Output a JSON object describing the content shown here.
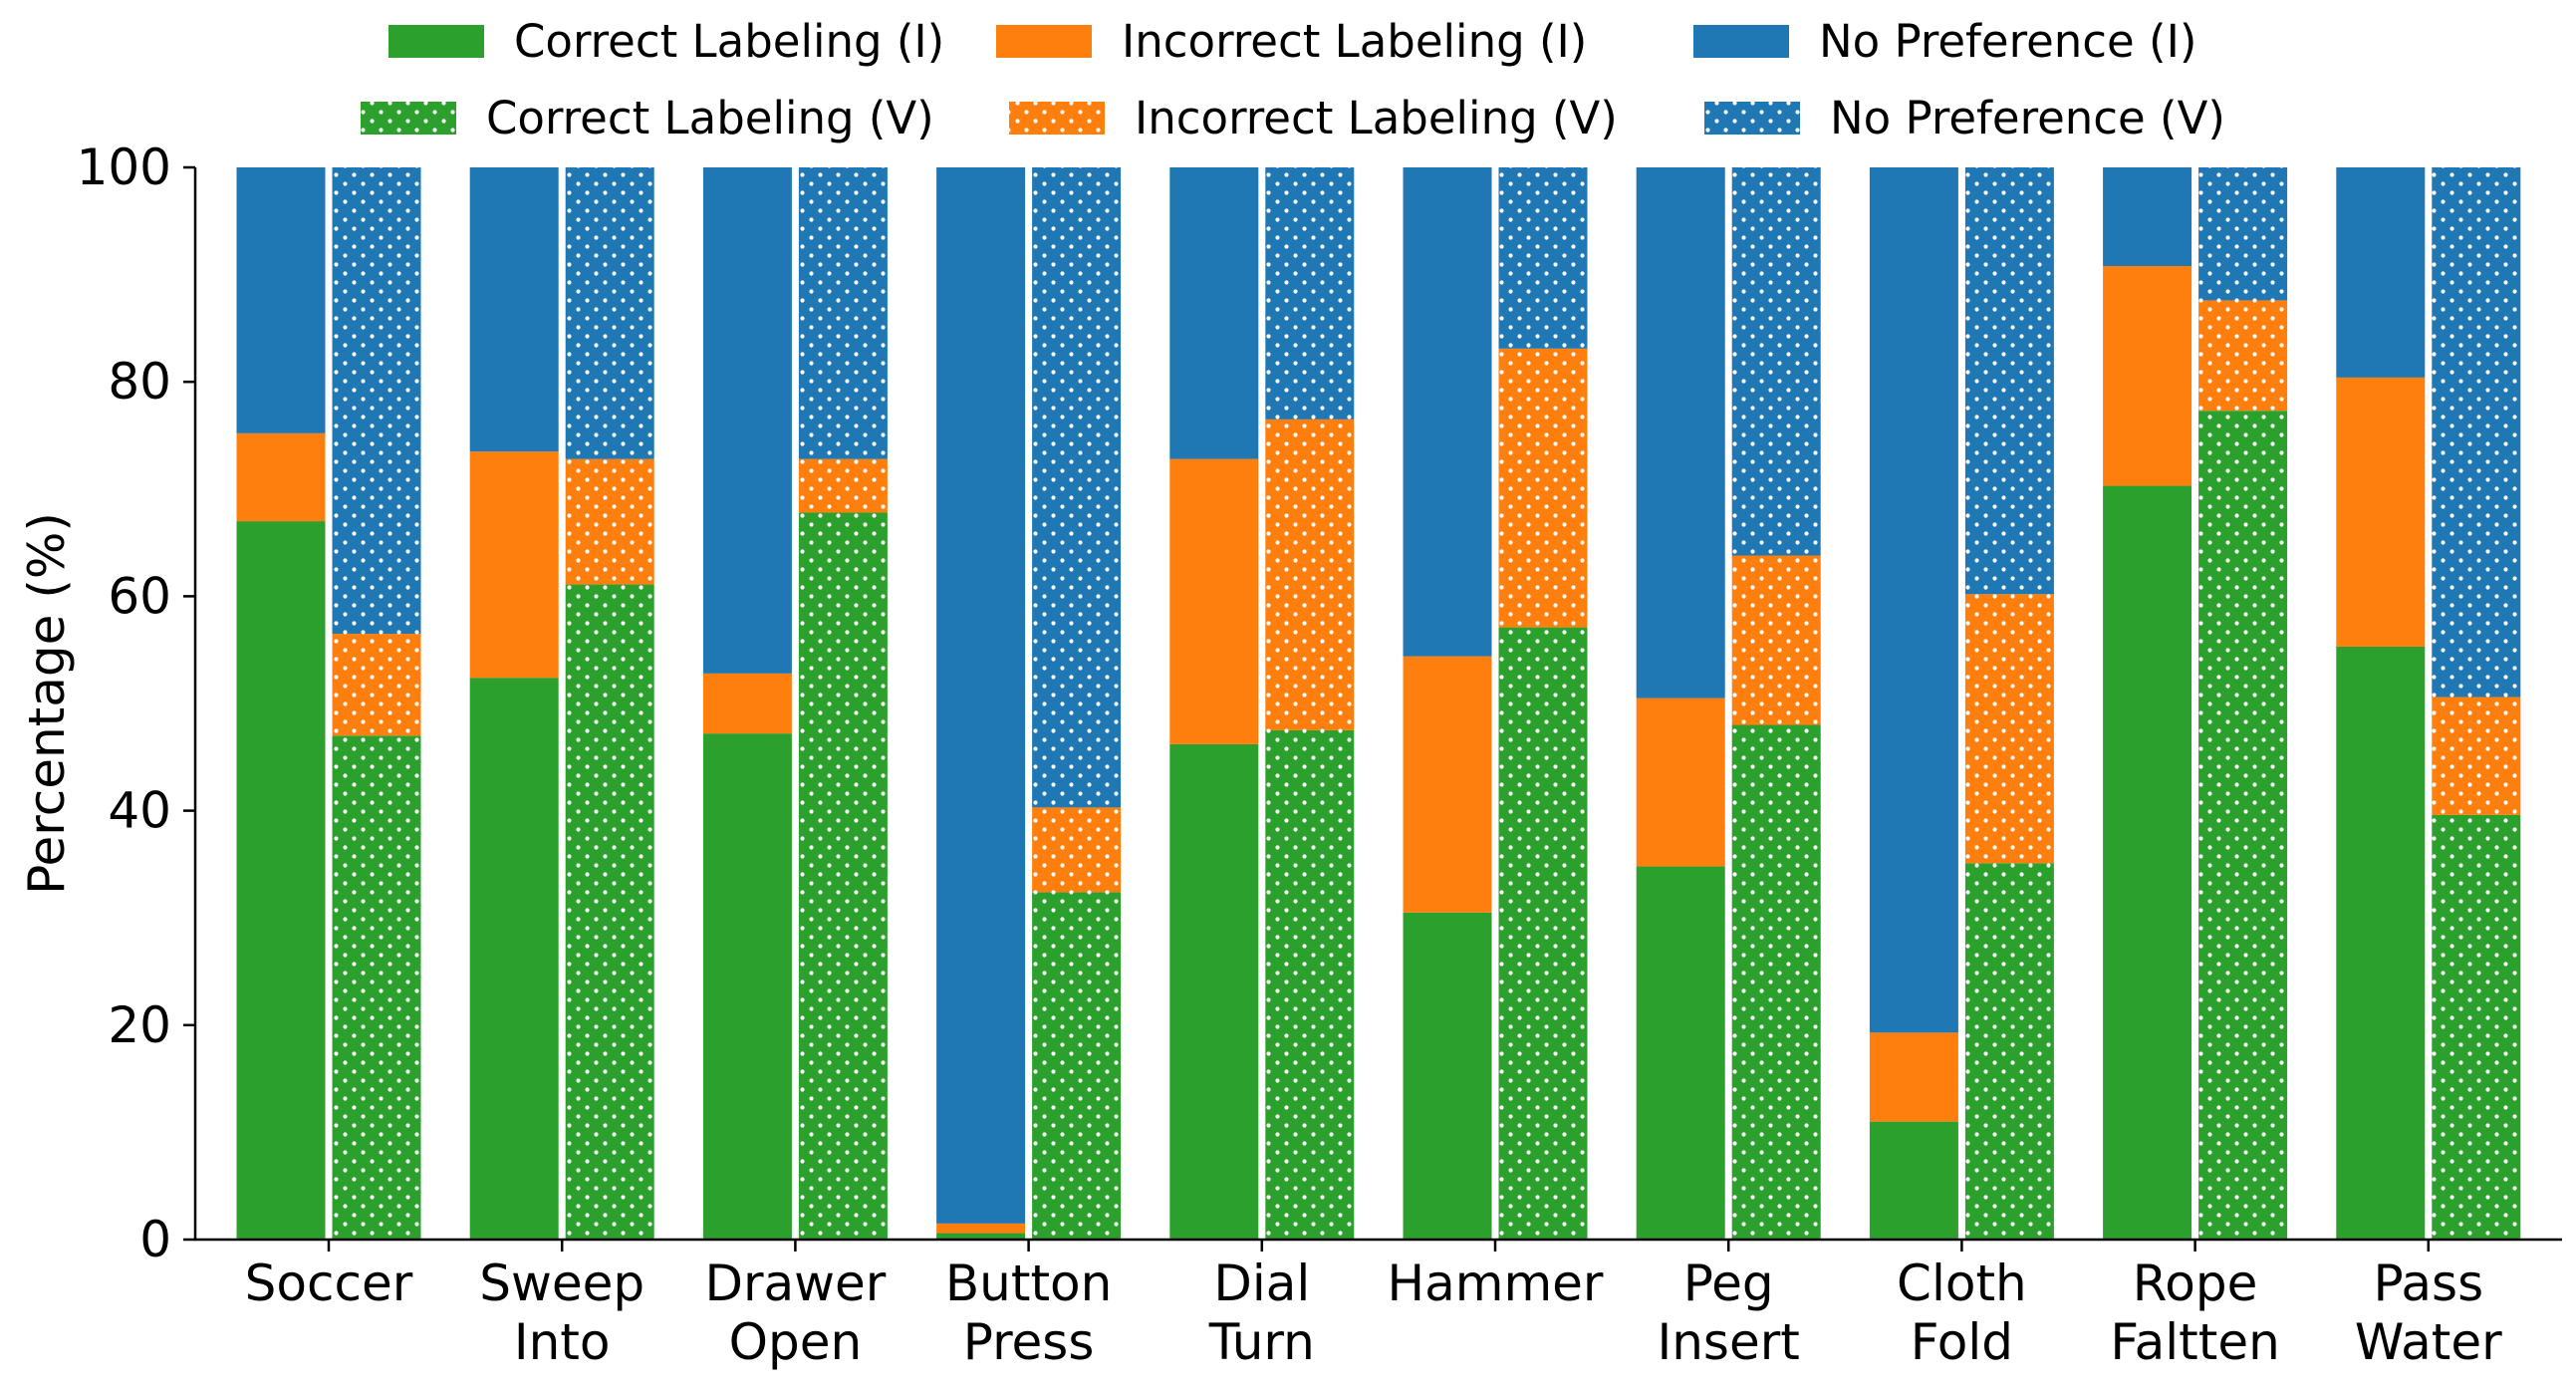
{
  "chart_data": {
    "type": "bar",
    "stacked": true,
    "grouped": true,
    "title": "",
    "xlabel": "",
    "ylabel": "Percentage (%)",
    "ylim": [
      0,
      100
    ],
    "yticks": [
      "0",
      "20",
      "40",
      "60",
      "80",
      "100"
    ],
    "grid": false,
    "legend_position": "top, above plot",
    "categories": [
      [
        "Soccer"
      ],
      [
        "Sweep",
        "Into"
      ],
      [
        "Drawer",
        "Open"
      ],
      [
        "Button",
        "Press"
      ],
      [
        "Dial",
        "Turn"
      ],
      [
        "Hammer"
      ],
      [
        "Peg",
        "Insert"
      ],
      [
        "Cloth",
        "Fold"
      ],
      [
        "Rope",
        "Faltten"
      ],
      [
        "Pass",
        "Water"
      ]
    ],
    "groups": [
      {
        "key": "I",
        "pattern": "solid",
        "series": [
          {
            "name": "Correct Labeling (I)",
            "color": "#2ca02c",
            "values": [
              67.0,
              52.4,
              47.2,
              0.6,
              46.2,
              30.5,
              34.8,
              11.0,
              70.3,
              55.3
            ]
          },
          {
            "name": "Incorrect Labeling (I)",
            "color": "#ff7f0e",
            "values": [
              8.2,
              21.1,
              5.6,
              0.9,
              26.6,
              23.9,
              15.7,
              8.3,
              20.5,
              25.1
            ]
          },
          {
            "name": "No Preference (I)",
            "color": "#1f77b4",
            "values": [
              24.8,
              26.5,
              47.2,
              98.5,
              27.2,
              45.6,
              49.5,
              80.7,
              9.2,
              19.6
            ]
          }
        ]
      },
      {
        "key": "V",
        "pattern": "dots",
        "series": [
          {
            "name": "Correct Labeling (V)",
            "color": "#2ca02c",
            "values": [
              47.0,
              61.1,
              67.8,
              32.4,
              47.5,
              57.1,
              48.0,
              35.1,
              77.3,
              39.6
            ]
          },
          {
            "name": "Incorrect Labeling (V)",
            "color": "#ff7f0e",
            "values": [
              9.5,
              11.7,
              5.0,
              7.9,
              29.0,
              26.0,
              15.8,
              25.1,
              10.3,
              11.0
            ]
          },
          {
            "name": "No Preference (V)",
            "color": "#1f77b4",
            "values": [
              43.5,
              27.2,
              27.2,
              59.7,
              23.5,
              16.9,
              36.2,
              39.8,
              12.4,
              49.4
            ]
          }
        ]
      }
    ]
  }
}
